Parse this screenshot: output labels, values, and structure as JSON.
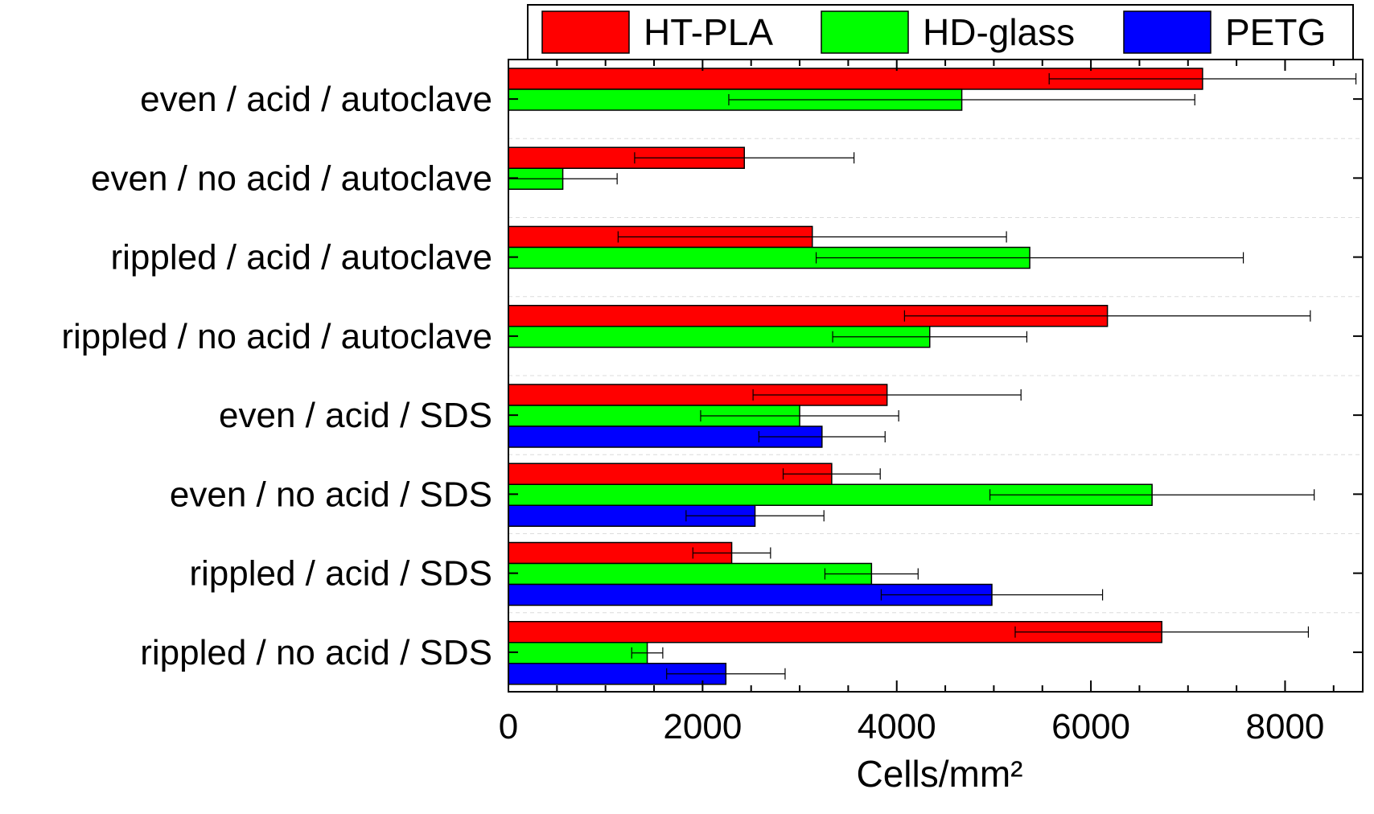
{
  "chart_data": {
    "type": "bar",
    "orientation": "horizontal",
    "title": "",
    "xlabel": "Cells/mm²",
    "ylabel": "",
    "xlim": [
      0,
      8800
    ],
    "xticks": [
      0,
      2000,
      4000,
      6000,
      8000
    ],
    "xtick_labels": [
      "0",
      "2000",
      "4000",
      "6000",
      "8000"
    ],
    "grid": "horizontal dashed (light)",
    "legend_position": "top",
    "categories": [
      "even / acid / autoclave",
      "even / no acid / autoclave",
      "rippled / acid / autoclave",
      "rippled / no acid / autoclave",
      "even / acid / SDS",
      "even / no acid / SDS",
      "rippled / acid / SDS",
      "rippled / no acid / SDS"
    ],
    "series": [
      {
        "name": "HT-PLA",
        "color": "#ff0000",
        "values": [
          7150,
          2430,
          3130,
          6170,
          3900,
          3330,
          2300,
          6730
        ],
        "errors": [
          1580,
          1130,
          2000,
          2090,
          1380,
          500,
          400,
          1510
        ]
      },
      {
        "name": "HD-glass",
        "color": "#00ff00",
        "values": [
          4670,
          560,
          5370,
          4340,
          3000,
          6630,
          3740,
          1430
        ],
        "errors": [
          2400,
          560,
          2200,
          1000,
          1020,
          1670,
          480,
          160
        ]
      },
      {
        "name": "PETG",
        "color": "#0000ff",
        "values": [
          null,
          null,
          null,
          null,
          3230,
          2540,
          4980,
          2240
        ],
        "errors": [
          null,
          null,
          null,
          null,
          650,
          710,
          1140,
          610
        ]
      }
    ]
  }
}
